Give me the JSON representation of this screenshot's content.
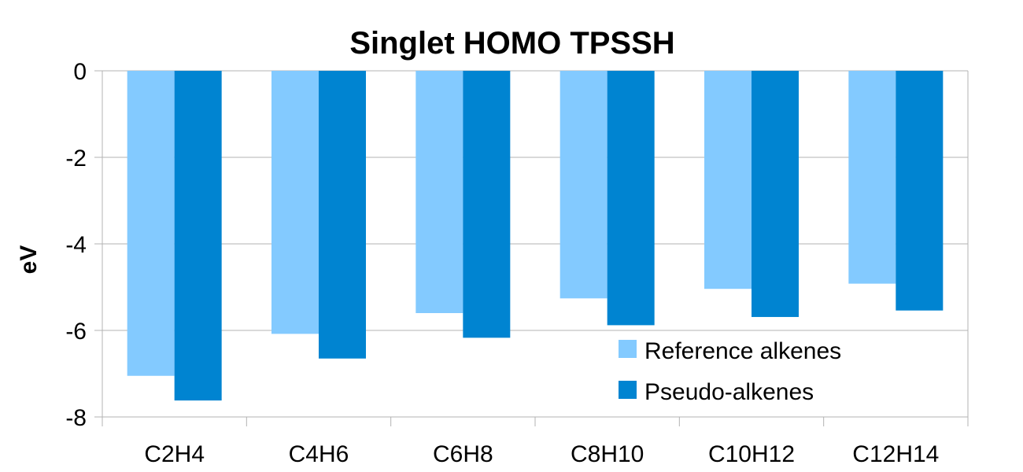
{
  "chart_data": {
    "type": "bar",
    "title": "Singlet HOMO TPSSH",
    "xlabel": "",
    "ylabel": "eV",
    "categories": [
      "C2H4",
      "C4H6",
      "C6H8",
      "C8H10",
      "C10H12",
      "C12H14"
    ],
    "series": [
      {
        "name": "Reference alkenes",
        "values": [
          -7.05,
          -6.08,
          -5.6,
          -5.26,
          -5.04,
          -4.92
        ],
        "color": "#83caff"
      },
      {
        "name": "Pseudo-alkenes",
        "values": [
          -7.62,
          -6.65,
          -6.17,
          -5.88,
          -5.69,
          -5.54
        ],
        "color": "#0084d1"
      }
    ],
    "ylim": [
      -8,
      0
    ],
    "yticks": [
      0,
      -2,
      -4,
      -6,
      -8
    ],
    "grid": true,
    "legend_position": "bottom-right"
  }
}
